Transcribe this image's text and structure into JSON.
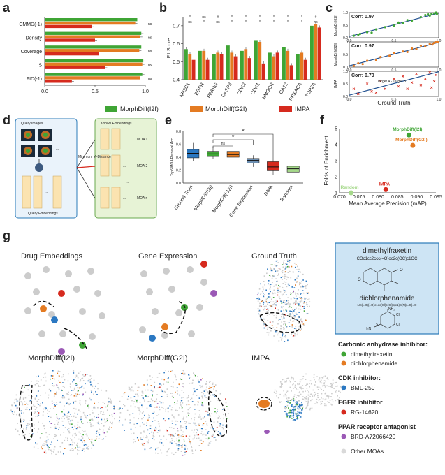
{
  "panels": {
    "a": "a",
    "b": "b",
    "c": "c",
    "d": "d",
    "e": "e",
    "f": "f",
    "g": "g"
  },
  "colors": {
    "green": "#3fa535",
    "orange": "#e47b22",
    "red": "#d62a1e",
    "blue": "#2b78c2",
    "purple": "#9b59b6",
    "grey": "#cccccc",
    "teal_box": "#2b7bb9",
    "light_green": "#cde7b0"
  },
  "legend": {
    "items": [
      "MorphDiff(I2I)",
      "MorphDiff(G2I)",
      "IMPA"
    ]
  },
  "chart_data": [
    {
      "id": "a",
      "type": "bar",
      "orientation": "horizontal",
      "categories": [
        "CMMD(-1)",
        "Density",
        "Coverage",
        "IS",
        "FID(-1)"
      ],
      "series": [
        {
          "name": "MorphDiff(I2I)",
          "values": [
            0.92,
            0.96,
            0.96,
            0.98,
            0.97
          ]
        },
        {
          "name": "MorphDiff(G2I)",
          "values": [
            0.9,
            0.95,
            0.94,
            0.97,
            0.95
          ]
        },
        {
          "name": "IMPA",
          "values": [
            0.47,
            0.5,
            0.54,
            0.6,
            0.27
          ]
        }
      ],
      "xlim": [
        0,
        1.0
      ],
      "xticks": [
        "0.0",
        "0.5",
        "1.0"
      ],
      "sig": [
        "ns",
        "ns",
        "ns",
        "ns",
        "ns"
      ]
    },
    {
      "id": "b",
      "type": "bar",
      "categories": [
        "NR3C1",
        "EGFR",
        "PPARG",
        "CASP3",
        "CDK2",
        "CDK1",
        "HMGCR",
        "CA12",
        "PRKACA",
        "TOP2A"
      ],
      "series": [
        {
          "name": "MorphDiff(I2I)",
          "values": [
            0.57,
            0.56,
            0.54,
            0.59,
            0.56,
            0.62,
            0.55,
            0.58,
            0.54,
            0.7
          ]
        },
        {
          "name": "MorphDiff(G2I)",
          "values": [
            0.54,
            0.56,
            0.55,
            0.55,
            0.57,
            0.61,
            0.53,
            0.56,
            0.55,
            0.71
          ]
        },
        {
          "name": "IMPA",
          "values": [
            0.51,
            0.51,
            0.54,
            0.53,
            0.52,
            0.49,
            0.55,
            0.48,
            0.51,
            0.69
          ]
        }
      ],
      "ylabel": "F1 Score",
      "ylim": [
        0.4,
        0.75
      ],
      "yticks": [
        "0.4",
        "0.5",
        "0.6",
        "0.7"
      ],
      "sig_top": [
        "*",
        "ns",
        "#",
        "*",
        "*",
        "*",
        "*",
        "*",
        "*",
        "#"
      ],
      "sig_bottom": [
        "ns",
        "*",
        "ns",
        "*",
        "*",
        "*",
        "*",
        "*",
        "*",
        "ns"
      ]
    },
    {
      "id": "c",
      "type": "scatter",
      "xlabel": "Ground Truth",
      "xticks": [
        "0.0",
        "0.5",
        "1.0"
      ],
      "yticks": [
        "0.0",
        "0.5",
        "1.0"
      ],
      "subplots": [
        {
          "ylabel": "MorphDiff(I2I)",
          "corr": "Corr: 0.97",
          "color": "#3fa535",
          "points": [
            [
              0.05,
              0.08
            ],
            [
              0.1,
              0.12
            ],
            [
              0.12,
              0.15
            ],
            [
              0.2,
              0.22
            ],
            [
              0.25,
              0.2
            ],
            [
              0.3,
              0.33
            ],
            [
              0.4,
              0.42
            ],
            [
              0.5,
              0.48
            ],
            [
              0.55,
              0.6
            ],
            [
              0.6,
              0.58
            ],
            [
              0.65,
              0.7
            ],
            [
              0.7,
              0.68
            ],
            [
              0.8,
              0.82
            ],
            [
              0.85,
              0.9
            ],
            [
              0.9,
              0.88
            ],
            [
              0.95,
              0.97
            ],
            [
              0.97,
              1.0
            ],
            [
              0.92,
              0.95
            ],
            [
              0.88,
              0.93
            ],
            [
              0.98,
              0.95
            ]
          ]
        },
        {
          "ylabel": "MorphDiff(G2I)",
          "corr": "Corr: 0.97",
          "color": "#e47b22",
          "points": [
            [
              0.05,
              0.05
            ],
            [
              0.1,
              0.15
            ],
            [
              0.15,
              0.12
            ],
            [
              0.2,
              0.25
            ],
            [
              0.3,
              0.28
            ],
            [
              0.35,
              0.4
            ],
            [
              0.45,
              0.45
            ],
            [
              0.5,
              0.55
            ],
            [
              0.6,
              0.62
            ],
            [
              0.65,
              0.6
            ],
            [
              0.7,
              0.74
            ],
            [
              0.75,
              0.72
            ],
            [
              0.8,
              0.85
            ],
            [
              0.85,
              0.82
            ],
            [
              0.9,
              0.92
            ],
            [
              0.95,
              0.96
            ],
            [
              0.97,
              0.99
            ],
            [
              0.93,
              0.9
            ],
            [
              0.99,
              1.0
            ]
          ]
        },
        {
          "ylabel": "IMPA",
          "corr": "Corr: 0.70",
          "color": "#d62a1e",
          "annotation": "Target A - Target B",
          "points": [
            [
              0.05,
              0.3
            ],
            [
              0.1,
              0.1
            ],
            [
              0.2,
              0.5
            ],
            [
              0.25,
              0.2
            ],
            [
              0.3,
              0.15
            ],
            [
              0.35,
              0.6
            ],
            [
              0.4,
              0.3
            ],
            [
              0.5,
              0.7
            ],
            [
              0.55,
              0.4
            ],
            [
              0.6,
              0.8
            ],
            [
              0.65,
              0.3
            ],
            [
              0.7,
              0.55
            ],
            [
              0.75,
              0.9
            ],
            [
              0.8,
              0.45
            ],
            [
              0.85,
              0.7
            ],
            [
              0.9,
              0.95
            ],
            [
              0.95,
              0.6
            ],
            [
              0.97,
              0.85
            ],
            [
              0.92,
              0.35
            ]
          ]
        }
      ]
    },
    {
      "id": "e",
      "type": "box",
      "ylabel": "Top5 MOA Retrieval Acc",
      "categories": [
        "Ground Truth",
        "MorphDiff(I2I)",
        "MorphDiff(G2I)",
        "Gene Expression",
        "IMPA",
        "Random"
      ],
      "colors": [
        "#2b78c2",
        "#3fa535",
        "#e47b22",
        "#6c8fb2",
        "#d62a1e",
        "#a5d88a"
      ],
      "boxes": [
        {
          "min": 0.34,
          "q1": 0.39,
          "median": 0.46,
          "q3": 0.52,
          "max": 0.62
        },
        {
          "min": 0.37,
          "q1": 0.41,
          "median": 0.45,
          "q3": 0.49,
          "max": 0.55
        },
        {
          "min": 0.36,
          "q1": 0.4,
          "median": 0.44,
          "q3": 0.49,
          "max": 0.55
        },
        {
          "min": 0.25,
          "q1": 0.31,
          "median": 0.35,
          "q3": 0.38,
          "max": 0.43
        },
        {
          "min": 0.12,
          "q1": 0.19,
          "median": 0.25,
          "q3": 0.33,
          "max": 0.42
        },
        {
          "min": 0.1,
          "q1": 0.17,
          "median": 0.22,
          "q3": 0.26,
          "max": 0.3
        }
      ],
      "ylim": [
        0.0,
        0.8
      ],
      "yticks": [
        "0.0",
        "0.2",
        "0.4",
        "0.6",
        "0.8"
      ],
      "sig": [
        "ns",
        "*",
        "*"
      ]
    },
    {
      "id": "f",
      "type": "scatter",
      "xlabel": "Mean Average Precision (mAP)",
      "ylabel": "Folds of Enrichment",
      "xlim": [
        0.07,
        0.095
      ],
      "ylim": [
        1,
        5
      ],
      "xticks": [
        "0.070",
        "0.075",
        "0.080",
        "0.085",
        "0.090",
        "0.095"
      ],
      "yticks": [
        "1",
        "2",
        "3",
        "4",
        "5"
      ],
      "points": [
        {
          "name": "MorphDiff(I2I)",
          "x": 0.088,
          "y": 4.6,
          "color": "#3fa535"
        },
        {
          "name": "MorphDiff(G2I)",
          "x": 0.089,
          "y": 3.95,
          "color": "#e47b22"
        },
        {
          "name": "IMPA",
          "x": 0.082,
          "y": 1.2,
          "color": "#d62a1e"
        },
        {
          "name": "Random",
          "x": 0.073,
          "y": 1.0,
          "color": "#a5d88a"
        }
      ]
    }
  ],
  "d_schematic": {
    "query_images": "Query Images",
    "known_embeddings": "Known Embeddings",
    "distance": "Minimum M-Distance",
    "query_embeddings": "Query Embeddings",
    "moa": [
      "MOA 1",
      "MOA 2",
      "MOA n"
    ],
    "dots": "..."
  },
  "g_panels": {
    "drug_embeddings": "Drug Embeddings",
    "gene_expression": "Gene Expression",
    "ground_truth": "Ground Truth",
    "morph_i2i": "MorphDiff(I2I)",
    "morph_g2i": "MorphDiff(G2I)",
    "impa": "IMPA"
  },
  "chem": {
    "name1": "dimethylfraxetin",
    "smiles1": "COc1cc2ccc(=O)oc2c(OC)c1OC",
    "name2": "dichlorphenamide",
    "smiles2": "NS(=O)(=O)c1cc(Cl)c(Cl)c(c1)S(N)(=O)=O",
    "atoms": {
      "nh2": "NH₂",
      "cl": "Cl",
      "h2n": "H₂N",
      "s": "S",
      "o": "O"
    }
  },
  "moa_legend": [
    {
      "heading": "Carbonic anhydrase inhibitor:",
      "items": [
        {
          "name": "dimethylfraxetin",
          "color": "#3fa535"
        },
        {
          "name": "dichlorphenamide",
          "color": "#e47b22"
        }
      ]
    },
    {
      "heading": "CDK inhibitor:",
      "items": [
        {
          "name": "BML-259",
          "color": "#2b78c2"
        }
      ]
    },
    {
      "heading": "EGFR inhibitor",
      "items": [
        {
          "name": "RG-14620",
          "color": "#d62a1e"
        }
      ]
    },
    {
      "heading": "PPAR receptor antagonist",
      "items": [
        {
          "name": "BRD-A72066420",
          "color": "#9b59b6"
        }
      ]
    },
    {
      "heading": "",
      "items": [
        {
          "name": "Other MOAs",
          "color": "#d9d9d9"
        }
      ]
    }
  ]
}
